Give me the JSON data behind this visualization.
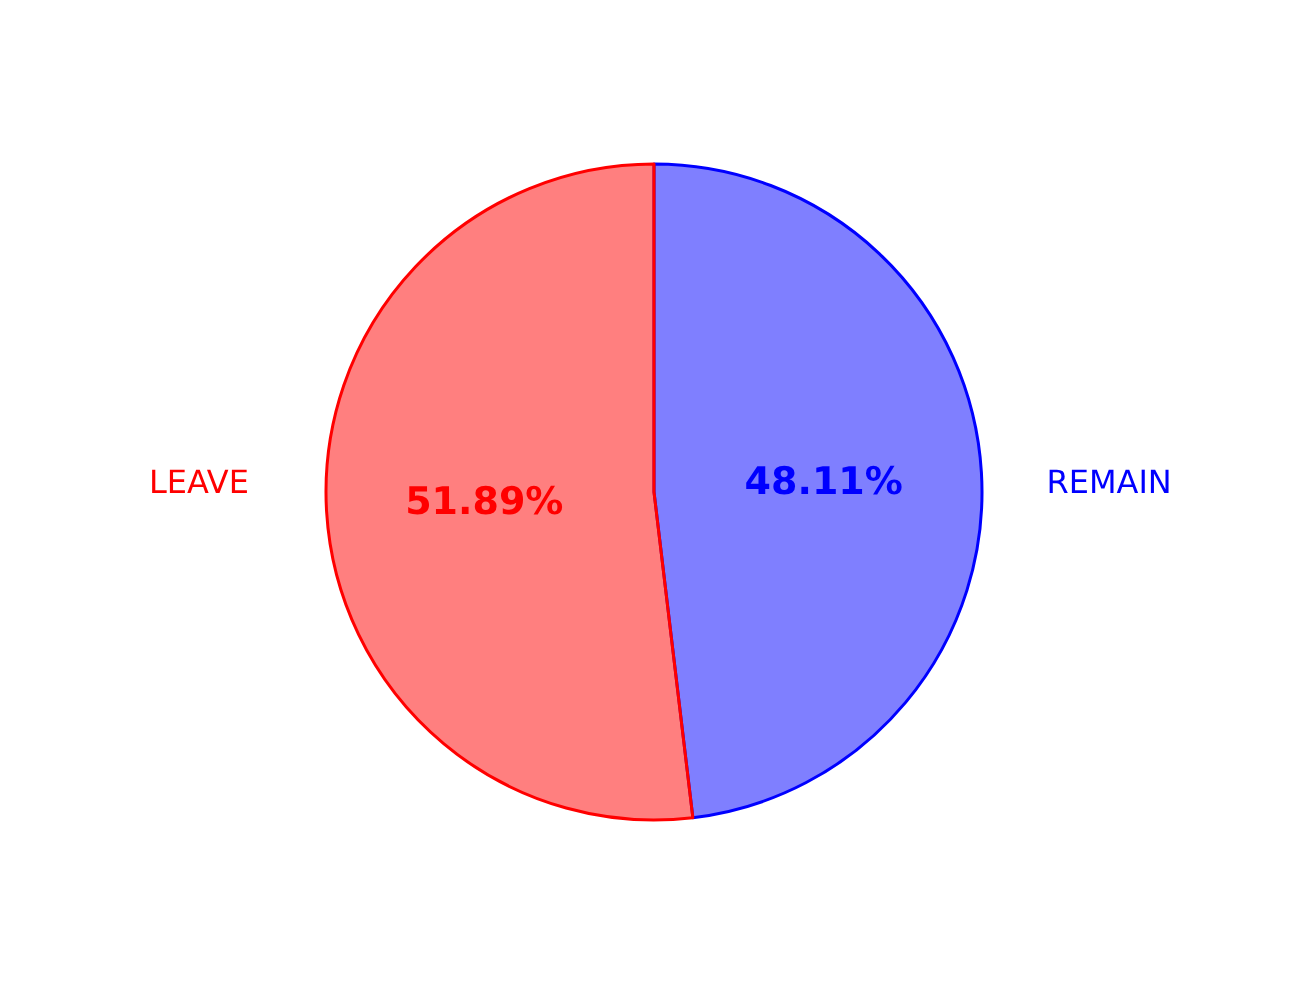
{
  "chart_data": {
    "type": "pie",
    "categories": [
      "REMAIN",
      "LEAVE"
    ],
    "values": [
      48.11,
      51.89
    ],
    "colors": [
      "#0000ff",
      "#ff0000"
    ],
    "value_labels": [
      "48.11%",
      "51.89%"
    ],
    "legend": false
  }
}
